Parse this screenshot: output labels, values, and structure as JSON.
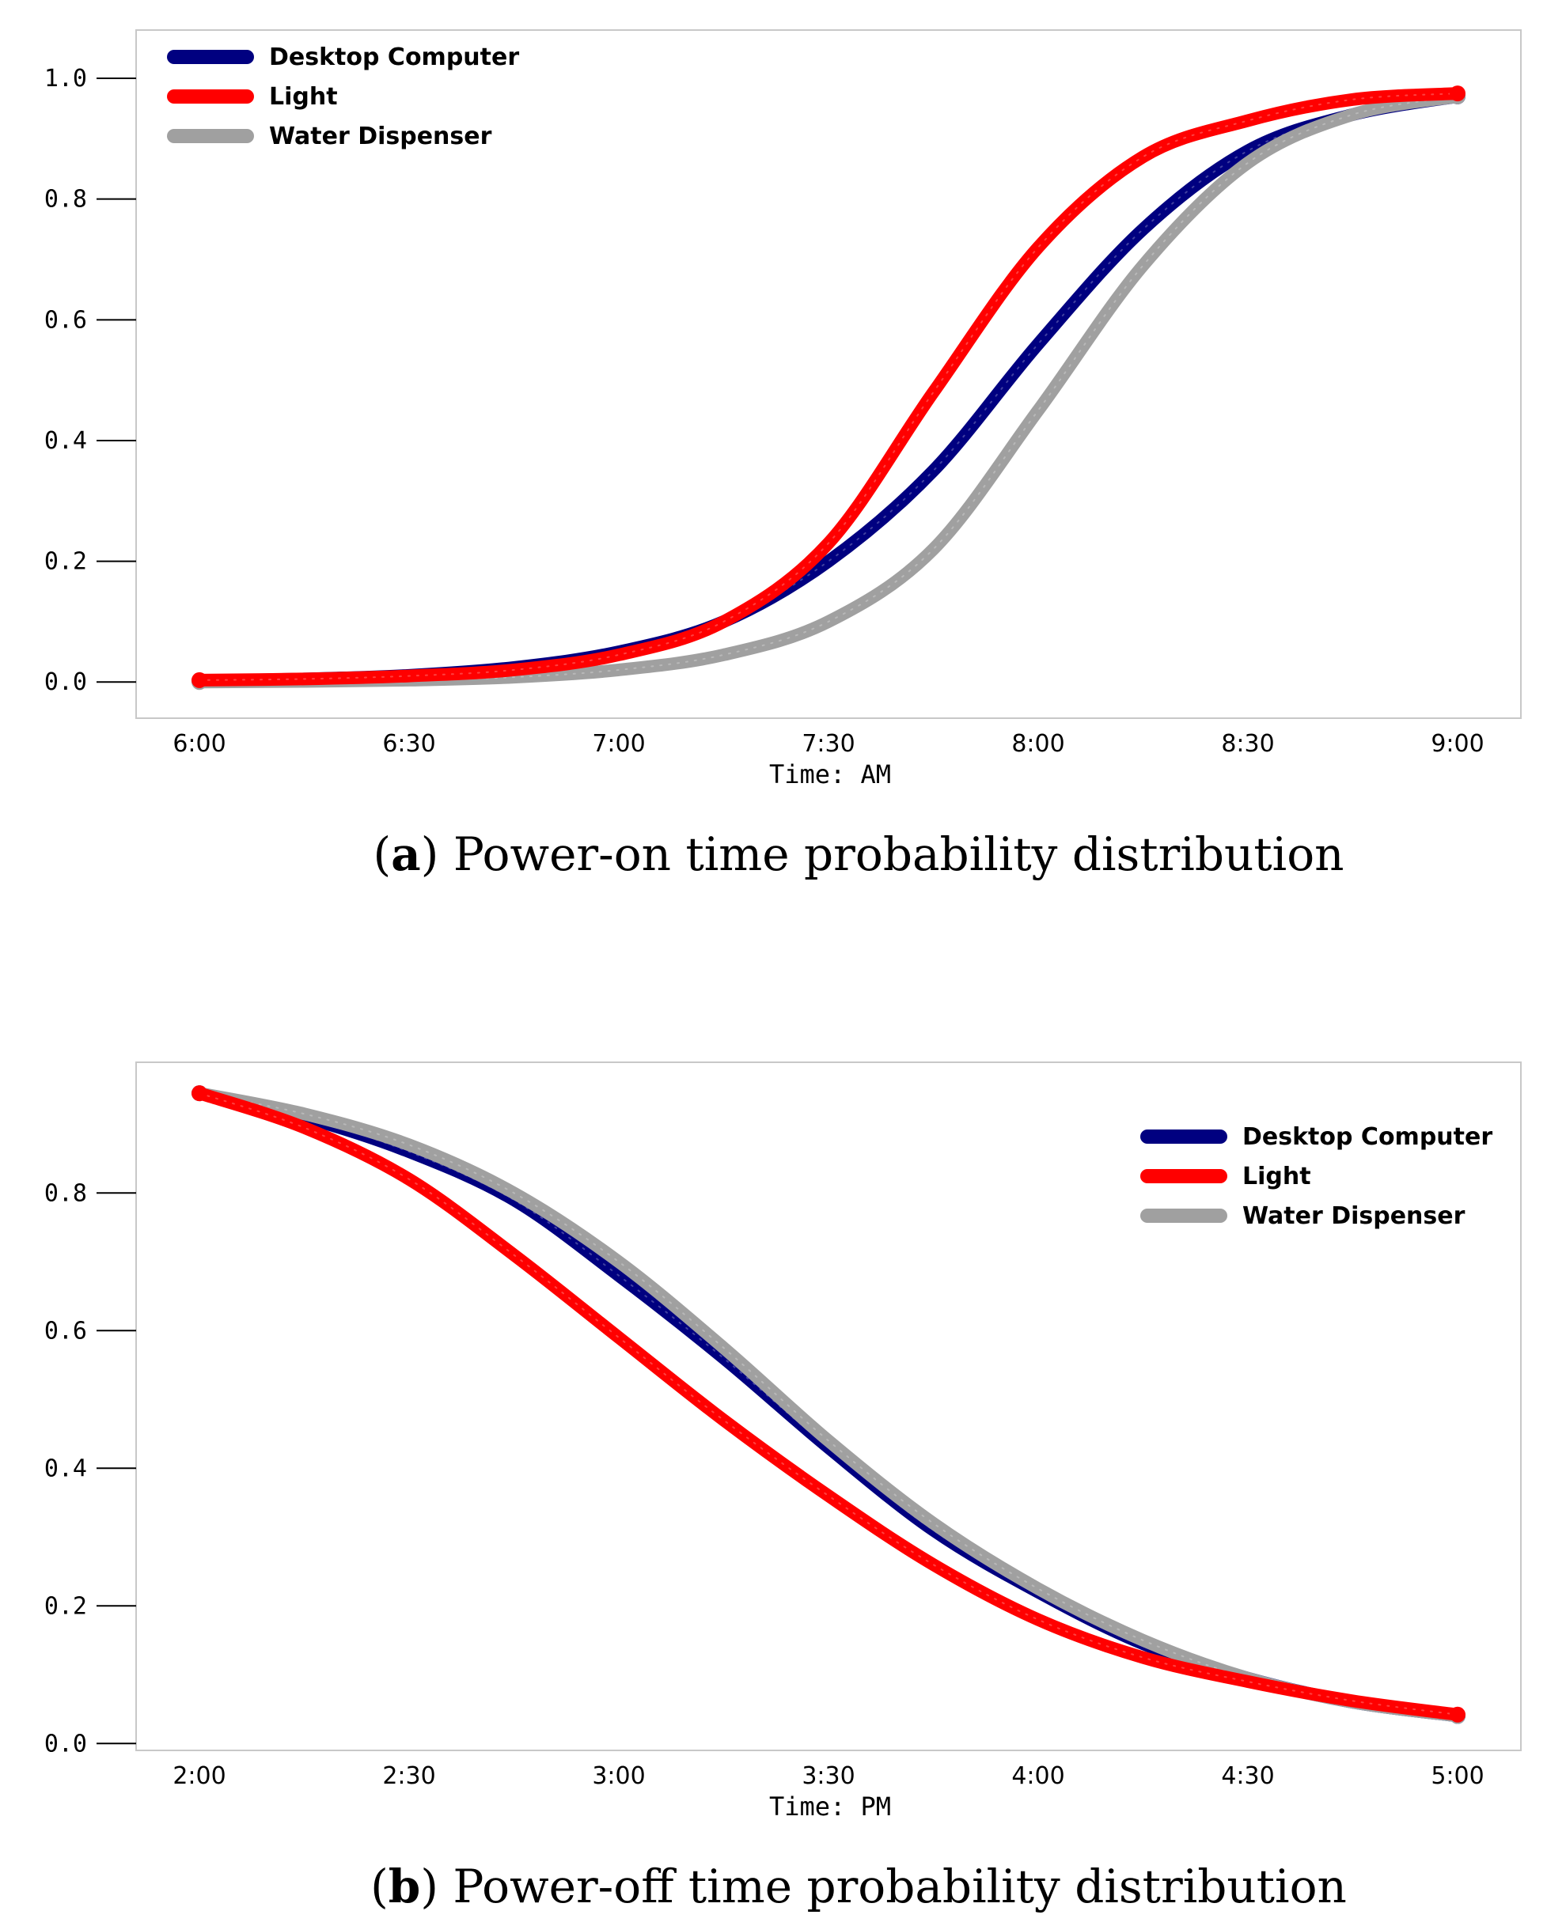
{
  "chart_data": [
    {
      "type": "line",
      "caption_letter": "a",
      "caption_text": "Power-on time probability distribution",
      "xlabel": "Time: AM",
      "ylabel": "",
      "x_ticks": [
        "6:00",
        "6:30",
        "7:00",
        "7:30",
        "8:00",
        "8:30",
        "9:00"
      ],
      "y_ticks": [
        "0.0",
        "0.2",
        "0.4",
        "0.6",
        "0.8",
        "1.0"
      ],
      "xlim": [
        0,
        180
      ],
      "ylim": [
        -0.06,
        1.08
      ],
      "legend_position": "top-left",
      "x_units": "minutes after 6:00",
      "series": [
        {
          "name": "Desktop Computer",
          "color": "#000080",
          "x": [
            0,
            15,
            30,
            45,
            60,
            75,
            90,
            105,
            120,
            135,
            150,
            165,
            180
          ],
          "values": [
            0.002,
            0.005,
            0.011,
            0.024,
            0.05,
            0.1,
            0.2,
            0.35,
            0.56,
            0.75,
            0.88,
            0.94,
            0.97
          ]
        },
        {
          "name": "Light",
          "color": "#ff0000",
          "x": [
            0,
            15,
            30,
            45,
            60,
            75,
            90,
            105,
            120,
            135,
            150,
            165,
            180
          ],
          "values": [
            0.003,
            0.005,
            0.01,
            0.02,
            0.045,
            0.1,
            0.23,
            0.48,
            0.72,
            0.87,
            0.93,
            0.965,
            0.975
          ]
        },
        {
          "name": "Water Dispenser",
          "color": "#a0a0a0",
          "x": [
            0,
            15,
            30,
            45,
            60,
            75,
            90,
            105,
            120,
            135,
            150,
            165,
            180
          ],
          "values": [
            0.0,
            0.001,
            0.003,
            0.008,
            0.02,
            0.045,
            0.1,
            0.22,
            0.45,
            0.69,
            0.86,
            0.94,
            0.97
          ]
        }
      ]
    },
    {
      "type": "line",
      "caption_letter": "b",
      "caption_text": "Power-off time probability distribution",
      "xlabel": "Time: PM",
      "ylabel": "",
      "x_ticks": [
        "2:00",
        "2:30",
        "3:00",
        "3:30",
        "4:00",
        "4:30",
        "5:00"
      ],
      "y_ticks": [
        "0.0",
        "0.2",
        "0.4",
        "0.6",
        "0.8"
      ],
      "xlim": [
        0,
        180
      ],
      "ylim": [
        -0.01,
        0.99
      ],
      "legend_position": "top-right",
      "x_units": "minutes after 2:00",
      "series": [
        {
          "name": "Desktop Computer",
          "color": "#000080",
          "x": [
            0,
            15,
            30,
            45,
            60,
            75,
            90,
            105,
            120,
            135,
            150,
            165,
            180
          ],
          "values": [
            0.945,
            0.91,
            0.86,
            0.79,
            0.68,
            0.56,
            0.43,
            0.31,
            0.22,
            0.145,
            0.095,
            0.06,
            0.04
          ]
        },
        {
          "name": "Light",
          "color": "#ff0000",
          "x": [
            0,
            15,
            30,
            45,
            60,
            75,
            90,
            105,
            120,
            135,
            150,
            165,
            180
          ],
          "values": [
            0.945,
            0.895,
            0.82,
            0.71,
            0.59,
            0.47,
            0.36,
            0.26,
            0.18,
            0.125,
            0.09,
            0.062,
            0.042
          ]
        },
        {
          "name": "Water Dispenser",
          "color": "#a0a0a0",
          "x": [
            0,
            15,
            30,
            45,
            60,
            75,
            90,
            105,
            120,
            135,
            150,
            165,
            180
          ],
          "values": [
            0.945,
            0.915,
            0.87,
            0.8,
            0.7,
            0.575,
            0.44,
            0.32,
            0.225,
            0.15,
            0.095,
            0.06,
            0.04
          ]
        }
      ]
    }
  ]
}
